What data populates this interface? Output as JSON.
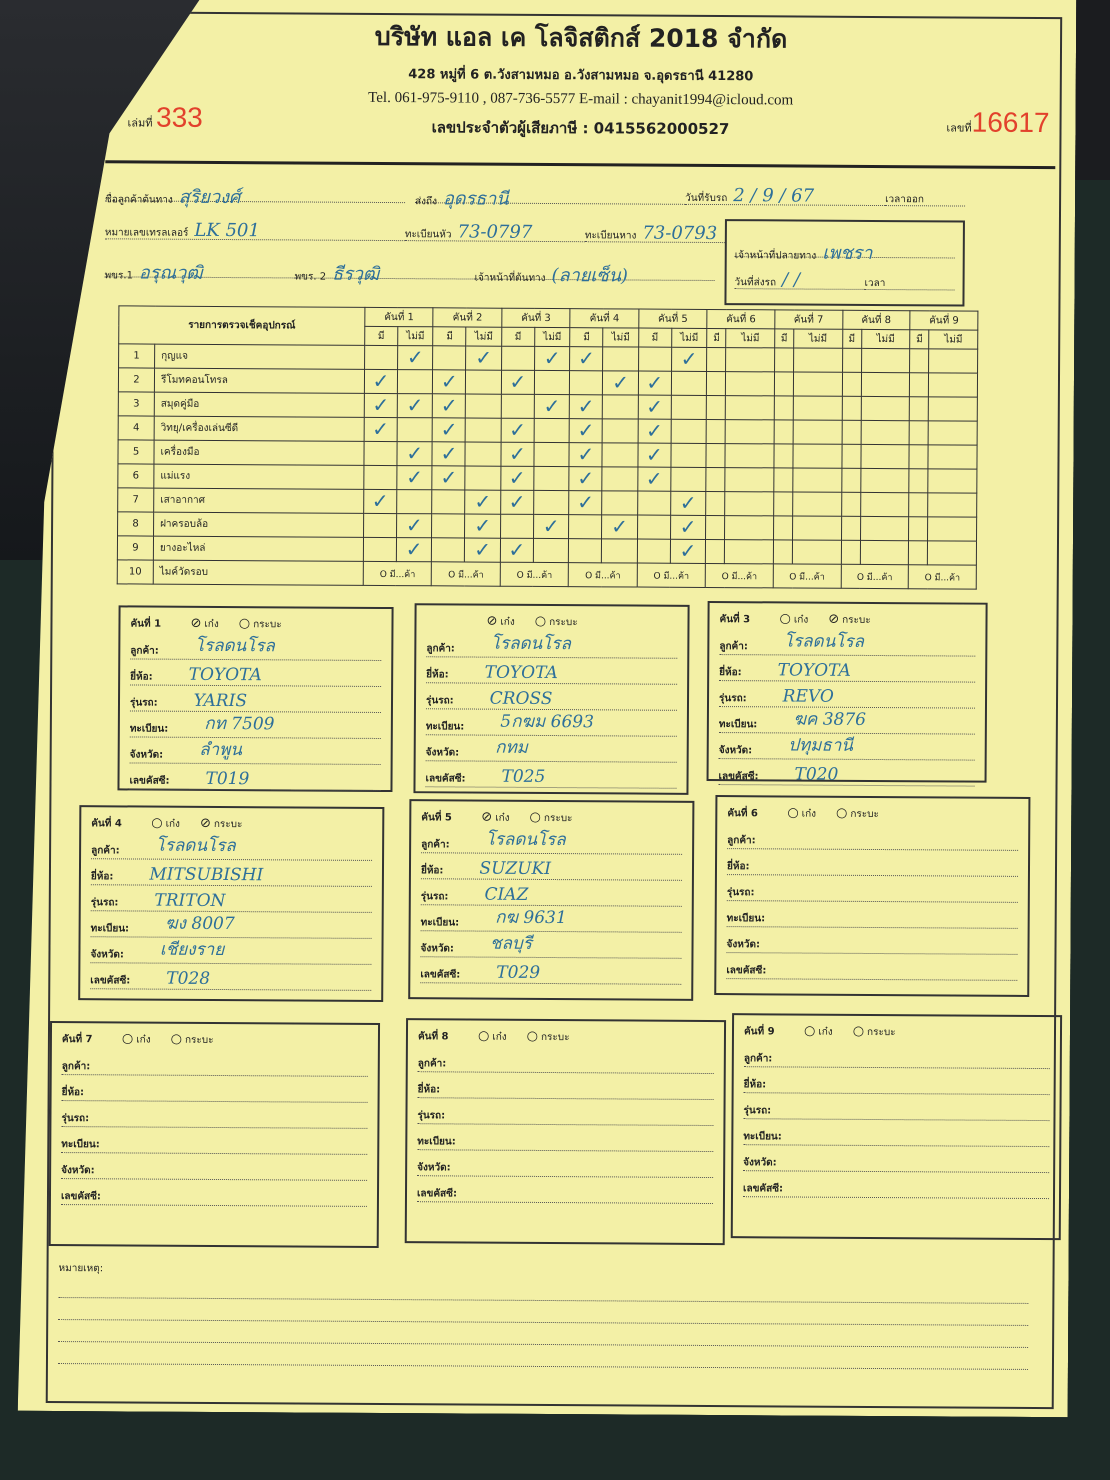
{
  "company": {
    "name": "บริษัท แอล เค โลจิสติกส์ 2018 จำกัด",
    "address": "428 หมู่ที่ 6 ต.วังสามหมอ อ.วังสามหมอ จ.อุดรธานี 41280",
    "contact": "Tel. 061-975-9110 , 087-736-5577  E-mail : chayanit1994@icloud.com",
    "tax_id": "เลขประจำตัวผู้เสียภาษี : 0415562000527",
    "book_label": "เล่มที่",
    "book_no": "333",
    "doc_label": "เลขที่",
    "doc_no": "16617"
  },
  "background": {
    "key_label": "0"
  },
  "info": {
    "origin_customer": {
      "label": "ชื่อลูกค้าต้นทาง",
      "value": "สุริยวงศ์"
    },
    "destination": {
      "label": "ส่งถึง",
      "value": "อุดรธานี"
    },
    "received_date": {
      "label": "วันที่รับรถ",
      "value": "2 / 9 / 67"
    },
    "depart_time": {
      "label": "เวลาออก",
      "value": ""
    },
    "trailer_no": {
      "label": "หมายเลขเทรลเลอร์",
      "value": "LK 501"
    },
    "head_plate": {
      "label": "ทะเบียนหัว",
      "value": "73-0797"
    },
    "tail_plate": {
      "label": "ทะเบียนหาง",
      "value": "73-0793"
    },
    "driver1": {
      "label": "พขร.1",
      "value": "อรุณวุฒิ"
    },
    "driver2": {
      "label": "พขร. 2",
      "value": "ธีรวุฒิ"
    },
    "origin_staff": {
      "label": "เจ้าหน้าที่ต้นทาง",
      "value": "(ลายเซ็น)"
    },
    "dest_staff": {
      "label": "เจ้าหน้าที่ปลายทาง",
      "value": "เพชรา"
    },
    "delivery_date": {
      "label": "วันที่ส่งรถ",
      "value": "/ /"
    },
    "delivery_time": {
      "label": "เวลา",
      "value": ""
    }
  },
  "checklist": {
    "title": "รายการตรวจเช็คอุปกรณ์",
    "cars": [
      "คันที่ 1",
      "คันที่ 2",
      "คันที่ 3",
      "คันที่ 4",
      "คันที่ 5",
      "คันที่ 6",
      "คันที่ 7",
      "คันที่ 8",
      "คันที่ 9"
    ],
    "have_label": "มี",
    "none_label": "ไม่มี",
    "mark": "✓",
    "row10_cell": "O มี...ค้า",
    "items": [
      {
        "no": "1",
        "name": "กุญแจ",
        "marks": [
          "none",
          "none",
          "none",
          "have",
          "none",
          "",
          "",
          "",
          ""
        ]
      },
      {
        "no": "2",
        "name": "รีโมทคอนโทรล",
        "marks": [
          "have",
          "have",
          "have",
          "none",
          "have",
          "",
          "",
          "",
          ""
        ]
      },
      {
        "no": "3",
        "name": "สมุดคู่มือ",
        "marks": [
          "both",
          "have",
          "none",
          "have",
          "have",
          "",
          "",
          "",
          ""
        ]
      },
      {
        "no": "4",
        "name": "วิทยุ/เครื่องเล่นซีดี",
        "marks": [
          "have",
          "have",
          "have",
          "have",
          "have",
          "",
          "",
          "",
          ""
        ]
      },
      {
        "no": "5",
        "name": "เครื่องมือ",
        "marks": [
          "none",
          "have",
          "have",
          "have",
          "have",
          "",
          "",
          "",
          ""
        ]
      },
      {
        "no": "6",
        "name": "แม่แรง",
        "marks": [
          "none",
          "have",
          "have",
          "have",
          "have",
          "",
          "",
          "",
          ""
        ]
      },
      {
        "no": "7",
        "name": "เสาอากาศ",
        "marks": [
          "have",
          "none",
          "have",
          "have",
          "none",
          "",
          "",
          "",
          ""
        ]
      },
      {
        "no": "8",
        "name": "ฝาครอบล้อ",
        "marks": [
          "none",
          "none",
          "none",
          "none",
          "none",
          "",
          "",
          "",
          ""
        ]
      },
      {
        "no": "9",
        "name": "ยางอะไหล่",
        "marks": [
          "none",
          "none",
          "have",
          "",
          "none",
          "",
          "",
          "",
          ""
        ]
      },
      {
        "no": "10",
        "name": "ไมค์วัดรอบ",
        "marks": []
      }
    ]
  },
  "vehicle_labels": {
    "sedan": "เก๋ง",
    "pickup": "กระบะ",
    "customer": "ลูกค้า:",
    "brand": "ยี่ห้อ:",
    "model": "รุ่นรถ:",
    "plate": "ทะเบียน:",
    "province": "จังหวัด:",
    "code": "เลขคัสซี:"
  },
  "vehicles": [
    {
      "title": "คันที่ 1",
      "type": "sedan",
      "customer": "โรลดนโรล",
      "brand": "TOYOTA",
      "model": "YARIS",
      "plate": "กท 7509",
      "province": "ลำพูน",
      "code": "T019"
    },
    {
      "title": "",
      "type": "sedan",
      "customer": "โรลดนโรล",
      "brand": "TOYOTA",
      "model": "CROSS",
      "plate": "5กฆม 6693",
      "province": "กทม",
      "code": "T025"
    },
    {
      "title": "คันที่ 3",
      "type": "pickup",
      "customer": "โรลดนโรล",
      "brand": "TOYOTA",
      "model": "REVO",
      "plate": "ฆค 3876",
      "province": "ปทุมธานี",
      "code": "T020"
    },
    {
      "title": "คันที่ 4",
      "type": "pickup",
      "customer": "โรลดนโรล",
      "brand": "MITSUBISHI",
      "model": "TRITON",
      "plate": "ฆง 8007",
      "province": "เชียงราย",
      "code": "T028"
    },
    {
      "title": "คันที่ 5",
      "type": "sedan",
      "customer": "โรลดนโรล",
      "brand": "SUZUKI",
      "model": "CIAZ",
      "plate": "กฆ 9631",
      "province": "ชลบุรี",
      "code": "T029"
    },
    {
      "title": "คันที่ 6",
      "type": "",
      "customer": "",
      "brand": "",
      "model": "",
      "plate": "",
      "province": "",
      "code": ""
    },
    {
      "title": "คันที่ 7",
      "type": "",
      "customer": "",
      "brand": "",
      "model": "",
      "plate": "",
      "province": "",
      "code": ""
    },
    {
      "title": "คันที่ 8",
      "type": "",
      "customer": "",
      "brand": "",
      "model": "",
      "plate": "",
      "province": "",
      "code": ""
    },
    {
      "title": "คันที่ 9",
      "type": "",
      "customer": "",
      "brand": "",
      "model": "",
      "plate": "",
      "province": "",
      "code": ""
    }
  ],
  "remarks": {
    "label": "หมายเหตุ:"
  },
  "colors": {
    "paper": "#f3f0a6",
    "ink": "#2d6f9a",
    "number_red": "#e2412c"
  }
}
